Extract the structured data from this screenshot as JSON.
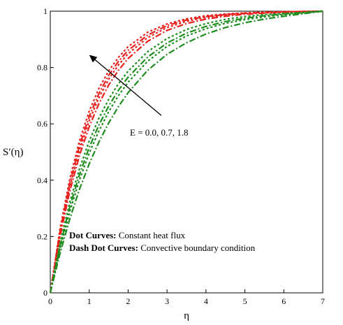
{
  "chart_data": {
    "type": "line",
    "xlabel": "η",
    "ylabel": "S′(η)",
    "xlim": [
      0,
      7
    ],
    "ylim": [
      0,
      1
    ],
    "xticks": [
      "0",
      "1",
      "2",
      "3",
      "4",
      "5",
      "6",
      "7"
    ],
    "yticks": [
      "0",
      "0.2",
      "0.4",
      "0.6",
      "0.8",
      "1"
    ],
    "grid": false,
    "x": [
      0,
      0.25,
      0.5,
      0.75,
      1,
      1.25,
      1.5,
      1.75,
      2,
      2.5,
      3,
      3.5,
      4,
      4.5,
      5,
      5.5,
      6,
      6.5,
      7
    ],
    "series": [
      {
        "color": "#e8201c",
        "dash": "dot",
        "values": [
          0,
          0.228,
          0.404,
          0.54,
          0.645,
          0.726,
          0.788,
          0.836,
          0.874,
          0.925,
          0.955,
          0.973,
          0.984,
          0.99,
          0.994,
          0.997,
          0.998,
          0.999,
          1.0
        ]
      },
      {
        "color": "#e8201c",
        "dash": "dashdot",
        "values": [
          0,
          0.218,
          0.388,
          0.522,
          0.626,
          0.708,
          0.772,
          0.822,
          0.861,
          0.915,
          0.949,
          0.969,
          0.981,
          0.988,
          0.993,
          0.996,
          0.998,
          0.999,
          1.0
        ]
      },
      {
        "color": "#e8201c",
        "dash": "dot",
        "values": [
          0,
          0.21,
          0.376,
          0.507,
          0.611,
          0.693,
          0.758,
          0.809,
          0.849,
          0.906,
          0.942,
          0.964,
          0.978,
          0.986,
          0.992,
          0.995,
          0.997,
          0.999,
          1.0
        ]
      },
      {
        "color": "#e8201c",
        "dash": "dashdot",
        "values": [
          0,
          0.2,
          0.36,
          0.488,
          0.59,
          0.672,
          0.738,
          0.79,
          0.832,
          0.893,
          0.932,
          0.956,
          0.972,
          0.982,
          0.989,
          0.993,
          0.996,
          0.998,
          1.0
        ]
      },
      {
        "color": "#1e8c1e",
        "dash": "dot",
        "values": [
          0,
          0.176,
          0.321,
          0.441,
          0.539,
          0.62,
          0.687,
          0.742,
          0.787,
          0.856,
          0.903,
          0.935,
          0.956,
          0.971,
          0.981,
          0.988,
          0.992,
          0.996,
          1.0
        ]
      },
      {
        "color": "#1e8c1e",
        "dash": "dashdot",
        "values": [
          0,
          0.166,
          0.305,
          0.42,
          0.516,
          0.596,
          0.663,
          0.719,
          0.766,
          0.837,
          0.887,
          0.922,
          0.946,
          0.963,
          0.975,
          0.984,
          0.99,
          0.995,
          1.0
        ]
      },
      {
        "color": "#1e8c1e",
        "dash": "dot",
        "values": [
          0,
          0.155,
          0.288,
          0.401,
          0.496,
          0.575,
          0.643,
          0.7,
          0.748,
          0.822,
          0.875,
          0.912,
          0.938,
          0.957,
          0.97,
          0.98,
          0.988,
          0.994,
          1.0
        ]
      },
      {
        "color": "#1e8c1e",
        "dash": "dashdot",
        "values": [
          0,
          0.14,
          0.262,
          0.368,
          0.458,
          0.536,
          0.603,
          0.661,
          0.711,
          0.79,
          0.847,
          0.888,
          0.919,
          0.942,
          0.959,
          0.972,
          0.982,
          0.991,
          1.0
        ]
      }
    ],
    "annotation": {
      "text": "E = 0.0, 0.7, 1.8",
      "arrow": {
        "from": [
          2.85,
          0.63
        ],
        "to": [
          1.0,
          0.845
        ]
      }
    },
    "legend": [
      {
        "bold": "Dot Curves:",
        "text": " Constant heat flux"
      },
      {
        "bold": "Dash Dot Curves:",
        "text": " Convective boundary condition"
      }
    ]
  }
}
